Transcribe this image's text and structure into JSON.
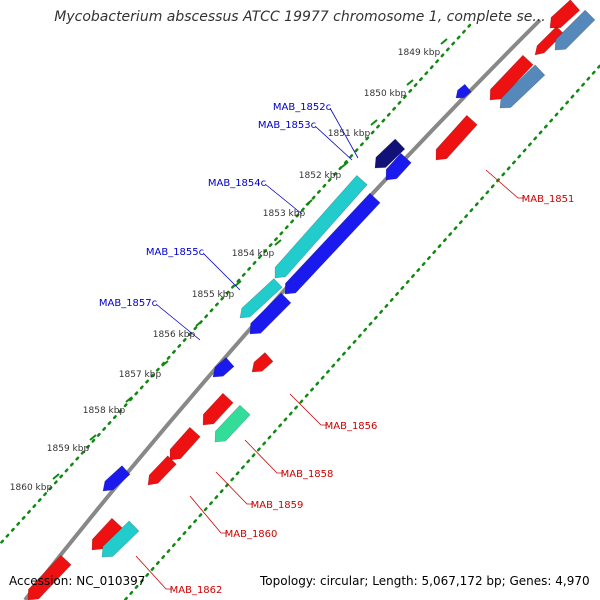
{
  "title": "Mycobacterium abscessus ATCC 19977 chromosome 1, complete se...",
  "footer": {
    "accession": "Accession: NC_010397",
    "summary": "Topology: circular; Length: 5,067,172 bp; Genes: 4,970"
  },
  "ticks": [
    "1849 kbp",
    "1850 kbp",
    "1851 kbp",
    "1852 kbp",
    "1853 kbp",
    "1854 kbp",
    "1855 kbp",
    "1856 kbp",
    "1857 kbp",
    "1858 kbp",
    "1859 kbp",
    "1860 kbp"
  ],
  "labels_reverse": [
    "MAB_1852c",
    "MAB_1853c",
    "MAB_1854c",
    "MAB_1855c",
    "MAB_1857c"
  ],
  "labels_forward": [
    "MAB_1851",
    "MAB_1856",
    "MAB_1858",
    "MAB_1859",
    "MAB_1860",
    "MAB_1862"
  ],
  "colors": {
    "forward": "#ee1111",
    "reverse": "#1a1aee",
    "reverse_rna": "#22cccc",
    "forward_rna": "#33dd99",
    "steelblue": "#5588bb",
    "navy": "#111177",
    "backbone": "#888888",
    "label_forward": "#cc0000",
    "label_reverse": "#0000cc"
  }
}
